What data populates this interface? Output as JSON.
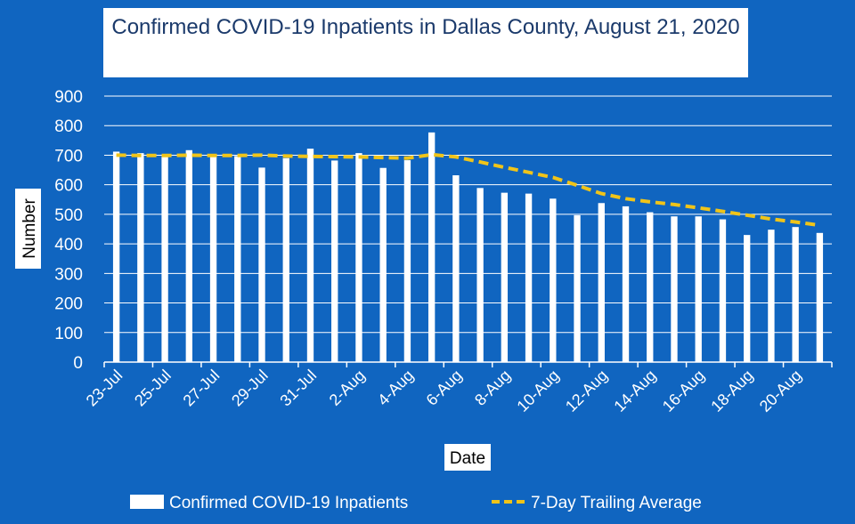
{
  "chart_data": {
    "type": "bar",
    "title": "Confirmed COVID-19 Inpatients in Dallas County, August 21, 2020",
    "xlabel": "Date",
    "ylabel": "Number",
    "ylim": [
      0,
      900
    ],
    "yticks": [
      0,
      100,
      200,
      300,
      400,
      500,
      600,
      700,
      800,
      900
    ],
    "grid": true,
    "legend_position": "bottom",
    "categories": [
      "23-Jul",
      "24-Jul",
      "25-Jul",
      "26-Jul",
      "27-Jul",
      "28-Jul",
      "29-Jul",
      "30-Jul",
      "31-Jul",
      "1-Aug",
      "2-Aug",
      "3-Aug",
      "4-Aug",
      "5-Aug",
      "6-Aug",
      "7-Aug",
      "8-Aug",
      "9-Aug",
      "10-Aug",
      "11-Aug",
      "12-Aug",
      "13-Aug",
      "14-Aug",
      "15-Aug",
      "16-Aug",
      "17-Aug",
      "18-Aug",
      "19-Aug",
      "20-Aug",
      "21-Aug"
    ],
    "x_tick_labels": [
      "23-Jul",
      "25-Jul",
      "27-Jul",
      "29-Jul",
      "31-Jul",
      "2-Aug",
      "4-Aug",
      "6-Aug",
      "8-Aug",
      "10-Aug",
      "12-Aug",
      "14-Aug",
      "16-Aug",
      "18-Aug",
      "20-Aug"
    ],
    "series": [
      {
        "name": "Confirmed COVID-19 Inpatients",
        "type": "bar",
        "color": "#ffffff",
        "values": [
          712,
          707,
          697,
          717,
          697,
          697,
          658,
          690,
          722,
          682,
          707,
          657,
          683,
          777,
          632,
          589,
          573,
          570,
          553,
          497,
          538,
          527,
          507,
          493,
          493,
          483,
          430,
          448,
          457,
          437
        ]
      },
      {
        "name": "7-Day Trailing Average",
        "type": "line",
        "style": "dashed",
        "color": "#f0c419",
        "values": [
          700,
          699,
          699,
          700,
          699,
          699,
          700,
          697,
          696,
          695,
          694,
          692,
          690,
          702,
          694,
          677,
          659,
          642,
          625,
          598,
          570,
          553,
          542,
          533,
          522,
          510,
          497,
          484,
          474,
          463
        ]
      }
    ]
  }
}
